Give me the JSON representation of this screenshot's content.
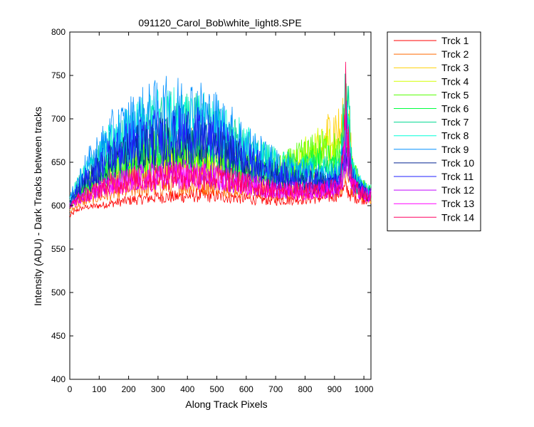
{
  "chart_data": {
    "type": "line",
    "title": "091120_Carol_Bob\\white_light8.SPE",
    "xlabel": "Along Track Pixels",
    "ylabel": "Intensity (ADU) - Dark Tracks between tracks",
    "xlim": [
      0,
      1024
    ],
    "ylim": [
      400,
      800
    ],
    "xticks": [
      0,
      100,
      200,
      300,
      400,
      500,
      600,
      700,
      800,
      900,
      1000
    ],
    "yticks": [
      400,
      450,
      500,
      550,
      600,
      650,
      700,
      750,
      800
    ],
    "grid": false,
    "legend_position": "outside-top-right",
    "x": [
      0,
      25,
      50,
      100,
      150,
      200,
      250,
      300,
      350,
      400,
      450,
      500,
      550,
      600,
      650,
      700,
      750,
      800,
      850,
      880,
      900,
      920,
      940,
      950,
      960,
      980,
      1000,
      1024
    ],
    "series": [
      {
        "name": "Trck 1",
        "color": "#ff0000",
        "values": [
          588,
          595,
          598,
          600,
          603,
          606,
          608,
          610,
          610,
          611,
          612,
          611,
          610,
          608,
          607,
          606,
          607,
          608,
          609,
          610,
          612,
          615,
          620,
          615,
          611,
          609,
          608,
          608
        ]
      },
      {
        "name": "Trck 2",
        "color": "#ff6a00",
        "values": [
          592,
          600,
          605,
          610,
          615,
          618,
          621,
          622,
          623,
          623,
          624,
          623,
          621,
          619,
          617,
          615,
          616,
          617,
          619,
          620,
          622,
          625,
          635,
          628,
          619,
          616,
          614,
          613
        ]
      },
      {
        "name": "Trck 3",
        "color": "#ffd000",
        "values": [
          598,
          608,
          615,
          625,
          635,
          642,
          648,
          652,
          655,
          656,
          655,
          652,
          648,
          642,
          637,
          633,
          635,
          642,
          660,
          680,
          688,
          680,
          700,
          690,
          640,
          620,
          612,
          608
        ]
      },
      {
        "name": "Trck 4",
        "color": "#d4ff00",
        "values": [
          598,
          610,
          618,
          630,
          642,
          650,
          656,
          660,
          663,
          664,
          662,
          658,
          652,
          645,
          640,
          637,
          642,
          655,
          665,
          668,
          664,
          658,
          690,
          672,
          640,
          625,
          616,
          612
        ]
      },
      {
        "name": "Trck 5",
        "color": "#55ff00",
        "values": [
          600,
          612,
          622,
          635,
          648,
          656,
          662,
          666,
          668,
          669,
          666,
          661,
          654,
          646,
          641,
          640,
          646,
          655,
          660,
          662,
          660,
          656,
          700,
          680,
          642,
          628,
          618,
          614
        ]
      },
      {
        "name": "Trck 6",
        "color": "#00ff40",
        "values": [
          600,
          612,
          620,
          632,
          643,
          650,
          655,
          658,
          660,
          660,
          658,
          654,
          648,
          641,
          636,
          633,
          636,
          642,
          648,
          650,
          648,
          646,
          710,
          680,
          640,
          626,
          617,
          613
        ]
      },
      {
        "name": "Trck 7",
        "color": "#00d890",
        "values": [
          605,
          620,
          632,
          650,
          665,
          676,
          684,
          690,
          693,
          694,
          690,
          683,
          674,
          662,
          652,
          645,
          642,
          640,
          640,
          639,
          638,
          640,
          755,
          700,
          640,
          627,
          620,
          616
        ]
      },
      {
        "name": "Trck 8",
        "color": "#00ffd8",
        "values": [
          605,
          622,
          635,
          655,
          672,
          682,
          690,
          696,
          699,
          700,
          696,
          688,
          678,
          665,
          654,
          646,
          642,
          639,
          637,
          636,
          636,
          638,
          700,
          670,
          637,
          626,
          619,
          615
        ]
      },
      {
        "name": "Trck 9",
        "color": "#0090ff",
        "values": [
          606,
          625,
          640,
          662,
          680,
          690,
          698,
          704,
          707,
          708,
          703,
          694,
          682,
          668,
          656,
          646,
          640,
          636,
          634,
          633,
          633,
          635,
          690,
          665,
          635,
          624,
          618,
          614
        ]
      },
      {
        "name": "Trck 10",
        "color": "#002090",
        "values": [
          603,
          615,
          625,
          640,
          653,
          661,
          667,
          671,
          673,
          674,
          671,
          665,
          657,
          647,
          639,
          633,
          629,
          627,
          626,
          625,
          625,
          627,
          670,
          650,
          628,
          620,
          615,
          612
        ]
      },
      {
        "name": "Trck 11",
        "color": "#2020ff",
        "values": [
          604,
          618,
          628,
          645,
          660,
          669,
          675,
          679,
          681,
          682,
          679,
          672,
          663,
          652,
          643,
          636,
          632,
          629,
          628,
          627,
          627,
          629,
          680,
          655,
          630,
          621,
          616,
          613
        ]
      },
      {
        "name": "Trck 12",
        "color": "#c000ff",
        "values": [
          600,
          608,
          613,
          620,
          626,
          630,
          633,
          635,
          636,
          636,
          635,
          633,
          630,
          626,
          622,
          619,
          618,
          618,
          619,
          620,
          621,
          624,
          660,
          640,
          622,
          617,
          614,
          612
        ]
      },
      {
        "name": "Trck 13",
        "color": "#ff00ff",
        "values": [
          598,
          606,
          611,
          618,
          624,
          628,
          631,
          633,
          634,
          634,
          633,
          631,
          628,
          624,
          620,
          617,
          616,
          616,
          617,
          618,
          619,
          622,
          720,
          660,
          624,
          617,
          613,
          611
        ]
      },
      {
        "name": "Trck 14",
        "color": "#ff0060",
        "values": [
          599,
          607,
          612,
          619,
          625,
          629,
          632,
          634,
          635,
          635,
          634,
          632,
          629,
          625,
          621,
          618,
          617,
          617,
          618,
          619,
          620,
          623,
          735,
          665,
          624,
          617,
          613,
          611
        ]
      }
    ]
  }
}
